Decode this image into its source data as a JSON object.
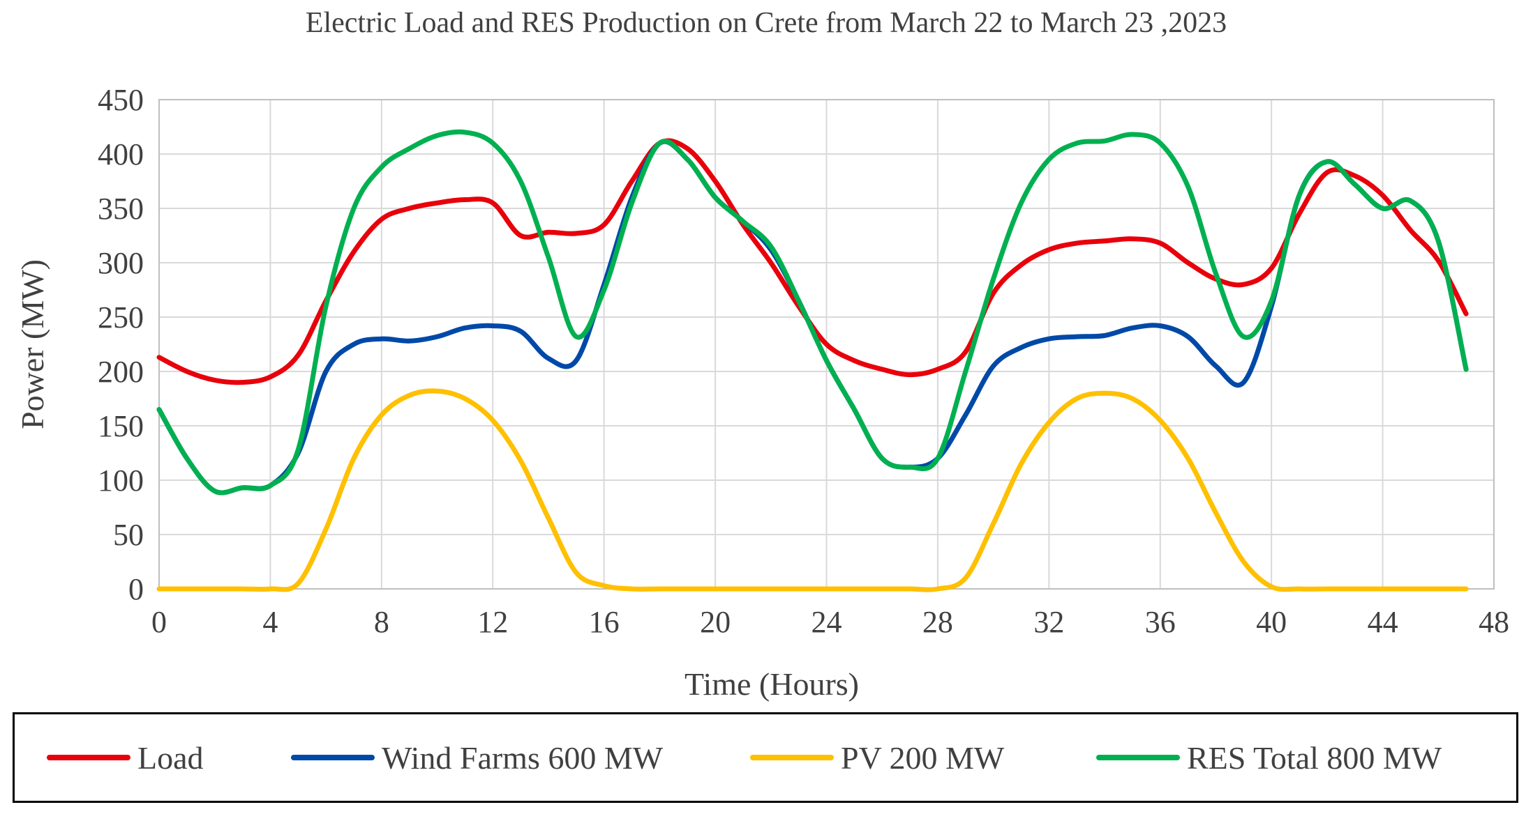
{
  "chart_data": {
    "type": "line",
    "title": "Electric Load and RES Production on Crete from March 22 to March 23 ,2023",
    "xlabel": "Time (Hours)",
    "ylabel": "Power (MW)",
    "xlim": [
      0,
      48
    ],
    "ylim": [
      0,
      450
    ],
    "x_ticks": [
      0,
      4,
      8,
      12,
      16,
      20,
      24,
      28,
      32,
      36,
      40,
      44,
      48
    ],
    "y_ticks": [
      0,
      50,
      100,
      150,
      200,
      250,
      300,
      350,
      400,
      450
    ],
    "x_tick_labels": [
      "0",
      "4",
      "8",
      "12",
      "16",
      "20",
      "24",
      "28",
      "32",
      "36",
      "40",
      "44",
      "48"
    ],
    "y_tick_labels": [
      "0",
      "50",
      "100",
      "150",
      "200",
      "250",
      "300",
      "350",
      "400",
      "450"
    ],
    "grid": true,
    "legend_position": "bottom",
    "x": [
      0,
      1,
      2,
      3,
      4,
      5,
      6,
      7,
      8,
      9,
      10,
      11,
      12,
      13,
      14,
      15,
      16,
      17,
      18,
      19,
      20,
      21,
      22,
      23,
      24,
      25,
      26,
      27,
      28,
      29,
      30,
      31,
      32,
      33,
      34,
      35,
      36,
      37,
      38,
      39,
      40,
      41,
      42,
      43,
      44,
      45,
      46,
      47
    ],
    "series": [
      {
        "name": "Load",
        "color": "#e8000b",
        "values": [
          213,
          200,
          192,
          190,
          195,
          215,
          265,
          310,
          340,
          350,
          355,
          358,
          355,
          325,
          328,
          327,
          335,
          375,
          410,
          405,
          375,
          335,
          300,
          260,
          225,
          210,
          202,
          197,
          202,
          218,
          272,
          298,
          312,
          318,
          320,
          322,
          318,
          300,
          285,
          280,
          295,
          345,
          383,
          380,
          362,
          330,
          302,
          253
        ]
      },
      {
        "name": "Wind Farms 600 MW",
        "color": "#0049a8",
        "values": [
          165,
          120,
          90,
          93,
          95,
          125,
          200,
          225,
          230,
          228,
          232,
          240,
          242,
          237,
          212,
          210,
          280,
          360,
          410,
          395,
          360,
          338,
          312,
          265,
          210,
          165,
          120,
          112,
          120,
          160,
          205,
          222,
          230,
          232,
          233,
          240,
          242,
          232,
          205,
          190,
          260,
          362,
          393,
          372,
          350,
          357,
          320,
          202
        ]
      },
      {
        "name": "PV 200 MW",
        "color": "#ffc000",
        "values": [
          0,
          0,
          0,
          0,
          0,
          5,
          55,
          120,
          160,
          178,
          182,
          175,
          155,
          118,
          65,
          15,
          3,
          0,
          0,
          0,
          0,
          0,
          0,
          0,
          0,
          0,
          0,
          0,
          0,
          10,
          60,
          115,
          153,
          175,
          180,
          175,
          155,
          120,
          70,
          25,
          2,
          0,
          0,
          0,
          0,
          0,
          0,
          0
        ]
      },
      {
        "name": "RES Total 800 MW",
        "color": "#00b050",
        "values": [
          165,
          120,
          90,
          93,
          95,
          128,
          260,
          350,
          388,
          405,
          417,
          420,
          410,
          375,
          305,
          232,
          275,
          355,
          410,
          395,
          360,
          338,
          315,
          265,
          210,
          165,
          120,
          112,
          120,
          200,
          285,
          355,
          395,
          410,
          412,
          418,
          410,
          370,
          290,
          232,
          265,
          362,
          393,
          372,
          350,
          357,
          320,
          202
        ]
      }
    ]
  }
}
